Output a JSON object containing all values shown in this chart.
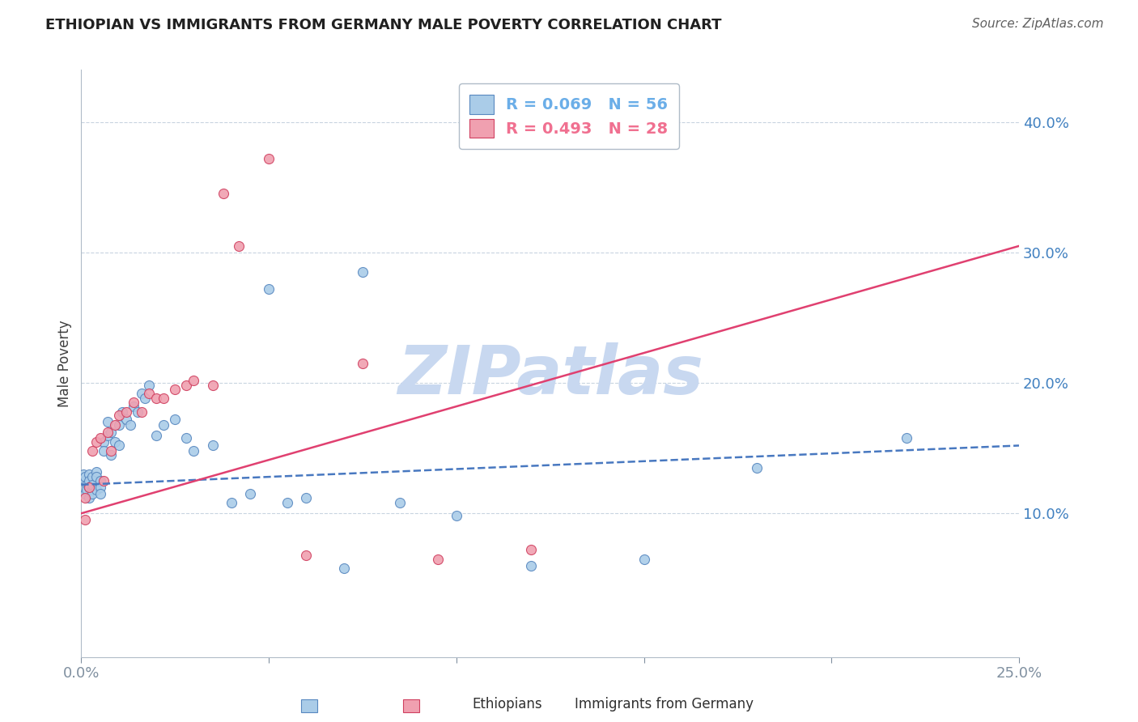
{
  "title": "ETHIOPIAN VS IMMIGRANTS FROM GERMANY MALE POVERTY CORRELATION CHART",
  "source": "Source: ZipAtlas.com",
  "ylabel": "Male Poverty",
  "xlim": [
    0.0,
    0.25
  ],
  "ylim": [
    -0.01,
    0.44
  ],
  "yticks": [
    0.1,
    0.2,
    0.3,
    0.4
  ],
  "ytick_labels": [
    "10.0%",
    "20.0%",
    "30.0%",
    "40.0%"
  ],
  "legend_entries": [
    {
      "label": "R = 0.069   N = 56",
      "color": "#6baee8"
    },
    {
      "label": "R = 0.493   N = 28",
      "color": "#f07090"
    }
  ],
  "ethiopians_x": [
    0.0005,
    0.001,
    0.001,
    0.001,
    0.0015,
    0.0015,
    0.002,
    0.002,
    0.002,
    0.002,
    0.003,
    0.003,
    0.003,
    0.003,
    0.004,
    0.004,
    0.004,
    0.005,
    0.005,
    0.005,
    0.006,
    0.006,
    0.007,
    0.007,
    0.008,
    0.008,
    0.009,
    0.01,
    0.01,
    0.011,
    0.012,
    0.013,
    0.014,
    0.015,
    0.016,
    0.017,
    0.018,
    0.02,
    0.022,
    0.025,
    0.028,
    0.03,
    0.035,
    0.04,
    0.045,
    0.05,
    0.055,
    0.06,
    0.07,
    0.075,
    0.085,
    0.1,
    0.12,
    0.15,
    0.18,
    0.22
  ],
  "ethiopians_y": [
    0.13,
    0.125,
    0.115,
    0.128,
    0.122,
    0.118,
    0.13,
    0.125,
    0.12,
    0.112,
    0.128,
    0.118,
    0.122,
    0.115,
    0.132,
    0.128,
    0.118,
    0.125,
    0.12,
    0.115,
    0.155,
    0.148,
    0.17,
    0.16,
    0.162,
    0.145,
    0.155,
    0.168,
    0.152,
    0.178,
    0.172,
    0.168,
    0.182,
    0.178,
    0.192,
    0.188,
    0.198,
    0.16,
    0.168,
    0.172,
    0.158,
    0.148,
    0.152,
    0.108,
    0.115,
    0.272,
    0.108,
    0.112,
    0.058,
    0.285,
    0.108,
    0.098,
    0.06,
    0.065,
    0.135,
    0.158
  ],
  "germany_x": [
    0.001,
    0.001,
    0.002,
    0.003,
    0.004,
    0.005,
    0.006,
    0.007,
    0.008,
    0.009,
    0.01,
    0.012,
    0.014,
    0.016,
    0.018,
    0.02,
    0.022,
    0.025,
    0.028,
    0.03,
    0.035,
    0.038,
    0.042,
    0.05,
    0.06,
    0.075,
    0.095,
    0.12
  ],
  "germany_y": [
    0.095,
    0.112,
    0.12,
    0.148,
    0.155,
    0.158,
    0.125,
    0.162,
    0.148,
    0.168,
    0.175,
    0.178,
    0.185,
    0.178,
    0.192,
    0.188,
    0.188,
    0.195,
    0.198,
    0.202,
    0.198,
    0.345,
    0.305,
    0.372,
    0.068,
    0.215,
    0.065,
    0.072
  ],
  "eth_color": "#aacce8",
  "ger_color": "#f0a0b0",
  "eth_edge_color": "#5888c0",
  "ger_edge_color": "#d04060",
  "eth_trend_x": [
    0.0,
    0.25
  ],
  "eth_trend_y": [
    0.122,
    0.152
  ],
  "ger_trend_x": [
    0.0,
    0.25
  ],
  "ger_trend_y": [
    0.1,
    0.305
  ],
  "eth_line_color": "#4878c0",
  "ger_line_color": "#e04070",
  "watermark": "ZIPatlas",
  "watermark_color": "#c8d8f0",
  "bg_color": "#ffffff",
  "grid_color": "#c8d4e0",
  "title_fontsize": 13,
  "axis_label_color": "#4080c0",
  "source_color": "#606060"
}
